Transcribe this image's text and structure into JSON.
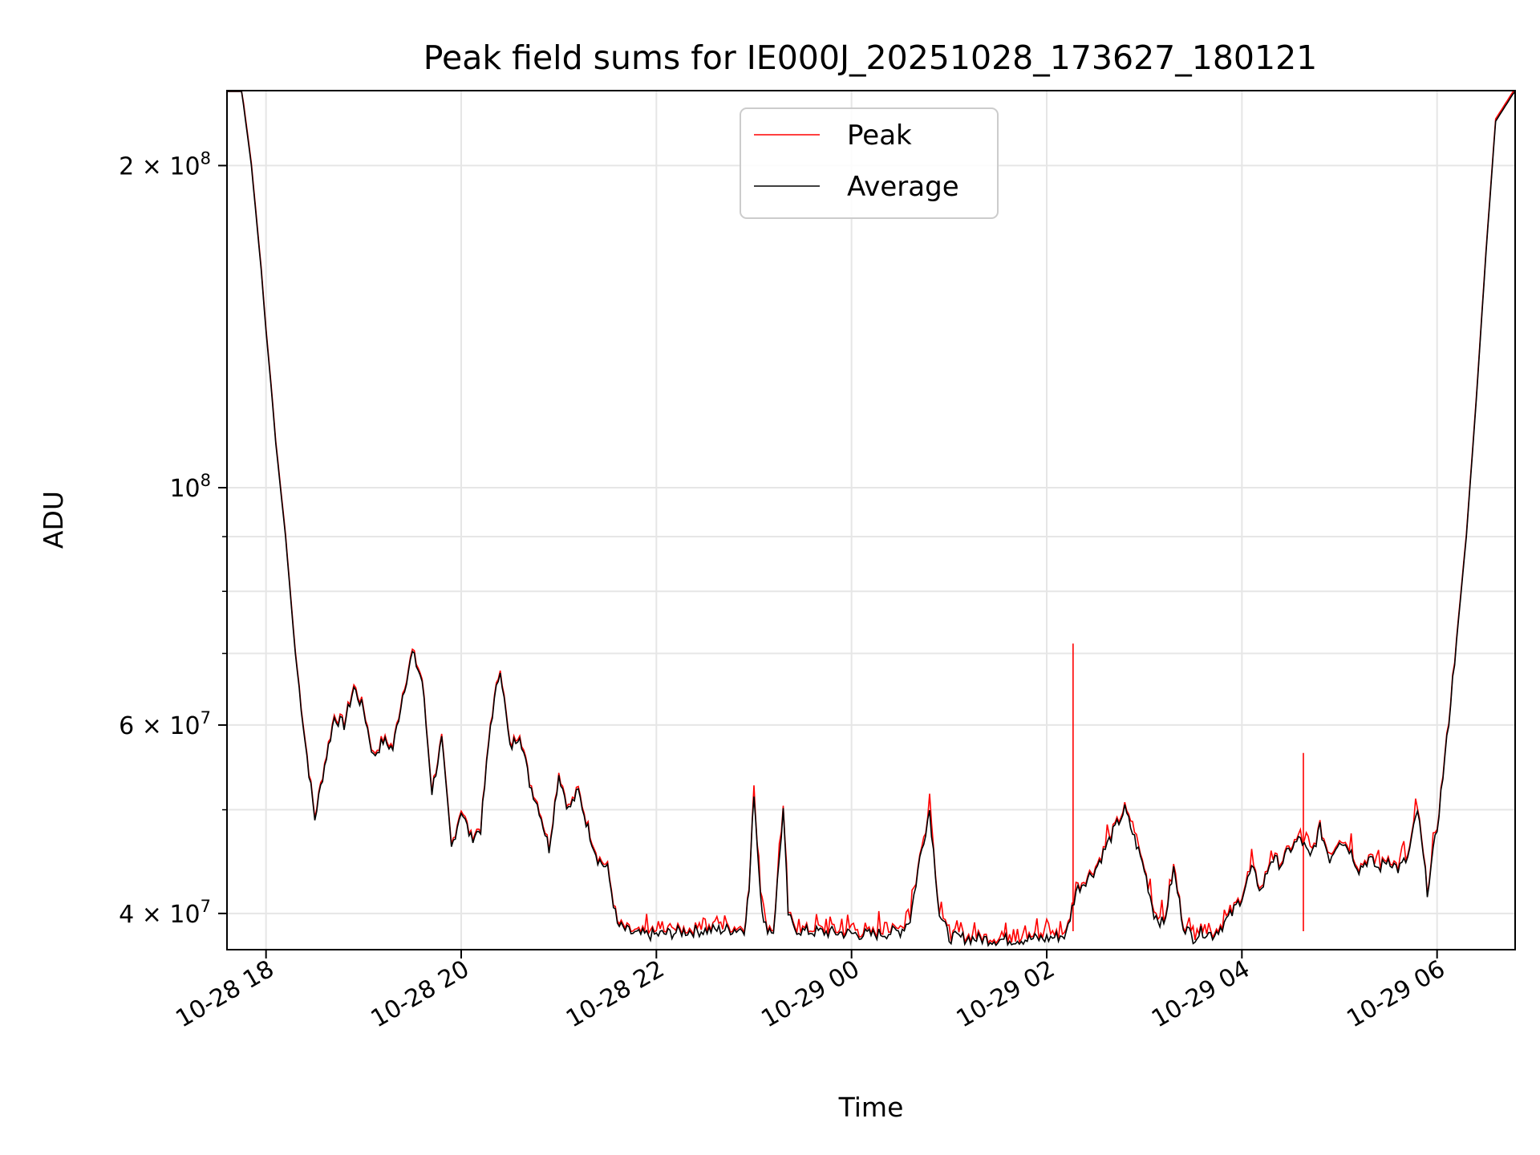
{
  "chart_data": {
    "type": "line",
    "title": "Peak field sums for IE000J_20251028_173627_180121",
    "xlabel": "Time",
    "ylabel": "ADU",
    "yscale": "log",
    "x_unit": "hours since 10-28 00:00",
    "xlim": [
      17.6,
      30.8
    ],
    "ylim": [
      37000000,
      235000000
    ],
    "grid": true,
    "legend_position": "top-center",
    "x_ticks": [
      {
        "value": 18,
        "label": "10-28 18"
      },
      {
        "value": 20,
        "label": "10-28 20"
      },
      {
        "value": 22,
        "label": "10-28 22"
      },
      {
        "value": 24,
        "label": "10-29 00"
      },
      {
        "value": 26,
        "label": "10-29 02"
      },
      {
        "value": 28,
        "label": "10-29 04"
      },
      {
        "value": 30,
        "label": "10-29 06"
      }
    ],
    "y_major_ticks": [
      {
        "value": 40000000,
        "mantissa": "4",
        "exponent": "7"
      },
      {
        "value": 60000000,
        "mantissa": "6",
        "exponent": "7"
      },
      {
        "value": 100000000,
        "mantissa": "",
        "exponent": "8"
      },
      {
        "value": 200000000,
        "mantissa": "2",
        "exponent": "8"
      }
    ],
    "y_minor_grid": [
      50000000,
      70000000,
      80000000,
      90000000
    ],
    "series": [
      {
        "name": "Peak",
        "color": "#ff0000",
        "spikes": [
          {
            "x": 26.27,
            "y": 71500000
          },
          {
            "x": 28.63,
            "y": 56500000
          }
        ]
      },
      {
        "name": "Average",
        "color": "#000000",
        "x": [
          17.6,
          17.75,
          17.85,
          17.95,
          18.0,
          18.05,
          18.1,
          18.2,
          18.3,
          18.4,
          18.5,
          18.6,
          18.7,
          18.8,
          18.9,
          19.0,
          19.1,
          19.2,
          19.3,
          19.4,
          19.5,
          19.6,
          19.7,
          19.8,
          19.9,
          20.0,
          20.1,
          20.2,
          20.3,
          20.4,
          20.5,
          20.6,
          20.7,
          20.8,
          20.9,
          21.0,
          21.1,
          21.2,
          21.3,
          21.4,
          21.5,
          21.6,
          21.7,
          21.8,
          22.0,
          22.3,
          22.6,
          22.9,
          22.95,
          23.0,
          23.05,
          23.1,
          23.2,
          23.3,
          23.35,
          23.4,
          23.5,
          23.8,
          24.2,
          24.5,
          24.6,
          24.7,
          24.8,
          24.9,
          25.0,
          25.5,
          26.0,
          26.2,
          26.3,
          26.4,
          26.5,
          26.6,
          26.7,
          26.8,
          26.9,
          27.0,
          27.1,
          27.2,
          27.3,
          27.4,
          27.5,
          27.6,
          27.7,
          27.8,
          27.9,
          28.0,
          28.1,
          28.2,
          28.3,
          28.4,
          28.5,
          28.6,
          28.7,
          28.8,
          28.9,
          29.0,
          29.1,
          29.2,
          29.3,
          29.4,
          29.5,
          29.6,
          29.7,
          29.8,
          29.9,
          30.0,
          30.1,
          30.2,
          30.3,
          30.4,
          30.5,
          30.6,
          30.8
        ],
        "values": [
          235000000,
          235000000,
          200000000,
          160000000,
          140000000,
          125000000,
          110000000,
          90000000,
          70000000,
          58000000,
          49000000,
          55000000,
          61000000,
          60000000,
          65000000,
          62000000,
          56000000,
          58000000,
          57000000,
          64000000,
          70000000,
          66000000,
          52000000,
          58000000,
          46000000,
          50000000,
          47000000,
          48000000,
          60000000,
          68000000,
          57000000,
          59000000,
          53000000,
          50000000,
          46000000,
          54000000,
          50000000,
          52000000,
          48000000,
          45000000,
          44000000,
          39000000,
          38500000,
          38200000,
          38200000,
          38500000,
          38600000,
          38700000,
          42000000,
          52000000,
          44000000,
          39000000,
          38500000,
          50000000,
          40000000,
          38800000,
          38500000,
          38400000,
          38200000,
          38500000,
          39500000,
          45000000,
          50000000,
          40000000,
          38000000,
          37800000,
          37900000,
          38200000,
          42000000,
          43000000,
          44000000,
          46000000,
          48000000,
          50000000,
          47000000,
          44000000,
          40000000,
          39000000,
          44000000,
          39000000,
          38000000,
          38500000,
          38200000,
          39000000,
          40000000,
          41500000,
          44000000,
          42000000,
          45000000,
          44500000,
          46000000,
          47000000,
          45000000,
          48000000,
          45000000,
          47000000,
          46000000,
          44000000,
          45000000,
          44000000,
          45000000,
          44000000,
          45000000,
          50000000,
          42000000,
          48000000,
          58000000,
          72000000,
          90000000,
          120000000,
          165000000,
          220000000,
          235000000
        ]
      }
    ]
  }
}
